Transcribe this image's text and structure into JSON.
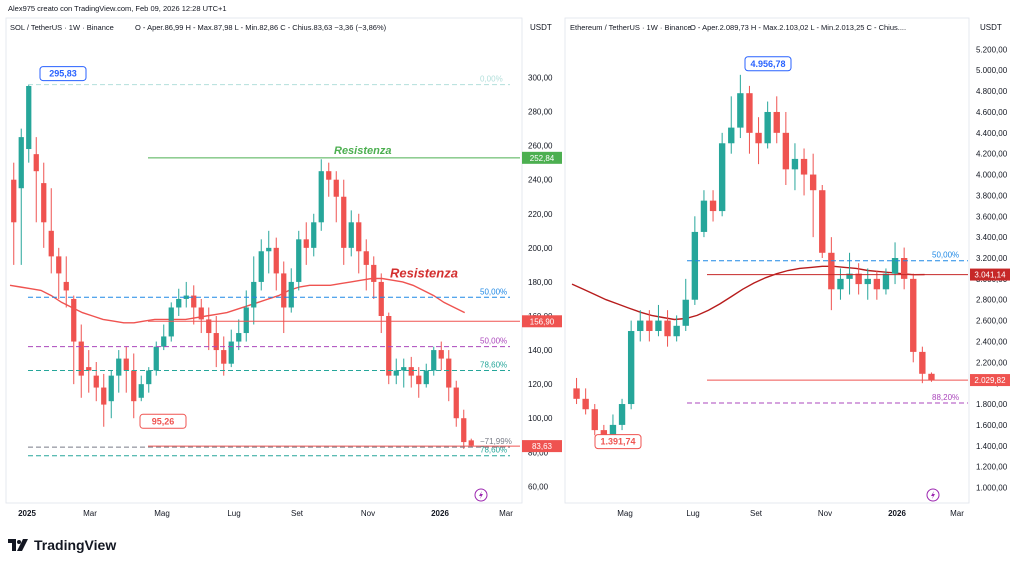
{
  "header_text": "Alex975 creato con TradingView.com, Feb 09, 2026 12:28 UTC+1",
  "brand": "TradingView",
  "chart_data": [
    {
      "type": "candlestick",
      "symbol_line": "SOL / TetherUS · 1W · Binance",
      "ohlc_line": "O - Aper.86,99  H - Max.87,98  L - Min.82,86  C - Chius.83,63  −3,36 (−3,86%)",
      "currency": "USDT",
      "y_ticks": [
        60,
        80,
        100,
        120,
        140,
        160,
        180,
        200,
        220,
        240,
        260,
        280,
        300
      ],
      "y_tick_labels": [
        "60,00",
        "80,00",
        "100,00",
        "120,00",
        "140,00",
        "160,00",
        "180,00",
        "200,00",
        "220,00",
        "240,00",
        "260,00",
        "280,00",
        "300,00"
      ],
      "ylim": [
        52,
        322
      ],
      "x_labels": [
        "2025",
        "Mar",
        "Mag",
        "Lug",
        "Set",
        "Nov",
        "2026",
        "Mar"
      ],
      "candles": [
        [
          240,
          215,
          190,
          250
        ],
        [
          235,
          265,
          190,
          270
        ],
        [
          258,
          295,
          250,
          296
        ],
        [
          255,
          245,
          215,
          265
        ],
        [
          238,
          215,
          200,
          250
        ],
        [
          210,
          195,
          185,
          235
        ],
        [
          195,
          185,
          170,
          200
        ],
        [
          180,
          175,
          165,
          195
        ],
        [
          170,
          145,
          120,
          172
        ],
        [
          145,
          125,
          112,
          155
        ],
        [
          130,
          128,
          115,
          140
        ],
        [
          125,
          118,
          110,
          133
        ],
        [
          118,
          108,
          95,
          126
        ],
        [
          110,
          125,
          100,
          128
        ],
        [
          125,
          135,
          115,
          140
        ],
        [
          135,
          128,
          115,
          142
        ],
        [
          128,
          110,
          100,
          138
        ],
        [
          112,
          120,
          110,
          125
        ],
        [
          120,
          128,
          115,
          130
        ],
        [
          128,
          142,
          125,
          145
        ],
        [
          142,
          148,
          140,
          155
        ],
        [
          148,
          165,
          145,
          168
        ],
        [
          165,
          170,
          160,
          176
        ],
        [
          170,
          172,
          165,
          180
        ],
        [
          172,
          165,
          155,
          178
        ],
        [
          165,
          158,
          150,
          170
        ],
        [
          158,
          150,
          140,
          165
        ],
        [
          150,
          140,
          130,
          160
        ],
        [
          140,
          132,
          125,
          148
        ],
        [
          132,
          145,
          130,
          152
        ],
        [
          145,
          150,
          140,
          158
        ],
        [
          150,
          165,
          145,
          175
        ],
        [
          165,
          180,
          155,
          195
        ],
        [
          180,
          198,
          175,
          205
        ],
        [
          198,
          200,
          185,
          210
        ],
        [
          200,
          185,
          175,
          206
        ],
        [
          185,
          165,
          150,
          192
        ],
        [
          165,
          180,
          162,
          188
        ],
        [
          180,
          205,
          175,
          210
        ],
        [
          205,
          200,
          190,
          215
        ],
        [
          200,
          215,
          195,
          220
        ],
        [
          215,
          245,
          210,
          252
        ],
        [
          245,
          240,
          230,
          250
        ],
        [
          240,
          230,
          215,
          245
        ],
        [
          230,
          200,
          190,
          240
        ],
        [
          200,
          215,
          195,
          222
        ],
        [
          215,
          198,
          185,
          220
        ],
        [
          198,
          190,
          175,
          205
        ],
        [
          190,
          180,
          170,
          195
        ],
        [
          180,
          160,
          150,
          185
        ],
        [
          160,
          125,
          120,
          162
        ],
        [
          125,
          128,
          120,
          135
        ],
        [
          128,
          130,
          118,
          135
        ],
        [
          130,
          125,
          118,
          136
        ],
        [
          125,
          120,
          112,
          130
        ],
        [
          120,
          128,
          118,
          132
        ],
        [
          128,
          140,
          125,
          142
        ],
        [
          140,
          135,
          128,
          145
        ],
        [
          135,
          118,
          110,
          140
        ],
        [
          118,
          100,
          95,
          122
        ],
        [
          100,
          86,
          82,
          105
        ],
        [
          87,
          84,
          83,
          88
        ]
      ],
      "ema": [
        178,
        177,
        176,
        175,
        172,
        168,
        165,
        162,
        160,
        158,
        157,
        156,
        156,
        157,
        158,
        158,
        158,
        158,
        159,
        160,
        161,
        162,
        164,
        166,
        168,
        170,
        172,
        175,
        177,
        178,
        178,
        178,
        179,
        180,
        181,
        182,
        182,
        181,
        180,
        178,
        175,
        172,
        168,
        165,
        162
      ],
      "levels": [
        {
          "label": "295,83",
          "value": 295.83,
          "kind": "high-callout"
        },
        {
          "label": "95,26",
          "value": 95.26,
          "kind": "low-callout"
        },
        {
          "label": "Resistenza",
          "value": 252.84,
          "color": "#4caf50"
        },
        {
          "label": "Resistenza",
          "value": 156.9,
          "color": "#d32f2f"
        },
        {
          "label": "252,84",
          "value": 252.84,
          "color": "#4caf50"
        },
        {
          "label": "156,90",
          "value": 156.9,
          "color": "#ef5350"
        },
        {
          "label": "83,63",
          "value": 83.63,
          "color": "#ef5350"
        },
        {
          "label": "0,00%",
          "value": 295.83,
          "color": "#b2dfdb"
        },
        {
          "label": "50,00%",
          "value": 171.0,
          "color": "#1e88e5"
        },
        {
          "label": "50,00%",
          "value": 142.0,
          "color": "#ab47bc"
        },
        {
          "label": "78,60%",
          "value": 128.0,
          "color": "#26a69a"
        },
        {
          "label": "78,60%",
          "value": 78.0,
          "color": "#26a69a"
        },
        {
          "label": "−71,99%",
          "value": 83.0,
          "color": "#787b86"
        }
      ]
    },
    {
      "type": "candlestick",
      "symbol_line": "Ethereum / TetherUS · 1W · Binance",
      "ohlc_line": "O - Aper.2.089,73  H - Max.2.103,02  L - Min.2.013,25  C - Chius....",
      "currency": "USDT",
      "y_ticks": [
        1000,
        1200,
        1400,
        1600,
        1800,
        2000,
        2200,
        2400,
        2600,
        2800,
        3000,
        3200,
        3400,
        3600,
        3800,
        4000,
        4200,
        4400,
        4600,
        4800,
        5000,
        5200
      ],
      "y_tick_labels": [
        "1.000,00",
        "1.200,00",
        "1.400,00",
        "1.600,00",
        "1.800,00",
        "2.000,00",
        "2.200,00",
        "2.400,00",
        "2.600,00",
        "2.800,00",
        "3.000,00",
        "3.200,00",
        "3.400,00",
        "3.600,00",
        "3.800,00",
        "4.000,00",
        "4.200,00",
        "4.400,00",
        "4.600,00",
        "4.800,00",
        "5.000,00",
        "5.200,00"
      ],
      "ylim": [
        880,
        5290
      ],
      "x_labels": [
        "Mag",
        "Lug",
        "Set",
        "Nov",
        "2026",
        "Mar"
      ],
      "candles": [
        [
          1950,
          1850,
          1800,
          2050
        ],
        [
          1850,
          1750,
          1700,
          1950
        ],
        [
          1750,
          1550,
          1500,
          1800
        ],
        [
          1550,
          1500,
          1380,
          1600
        ],
        [
          1500,
          1600,
          1450,
          1700
        ],
        [
          1600,
          1800,
          1550,
          1850
        ],
        [
          1800,
          2500,
          1750,
          2600
        ],
        [
          2500,
          2600,
          2400,
          2700
        ],
        [
          2600,
          2500,
          2400,
          2700
        ],
        [
          2500,
          2600,
          2450,
          2750
        ],
        [
          2600,
          2450,
          2350,
          2700
        ],
        [
          2450,
          2550,
          2400,
          2650
        ],
        [
          2550,
          2800,
          2500,
          3000
        ],
        [
          2800,
          3450,
          2750,
          3600
        ],
        [
          3450,
          3750,
          3400,
          3850
        ],
        [
          3750,
          3650,
          3550,
          3850
        ],
        [
          3650,
          4300,
          3600,
          4400
        ],
        [
          4300,
          4450,
          4200,
          4750
        ],
        [
          4450,
          4780,
          4350,
          4956
        ],
        [
          4780,
          4400,
          4200,
          4850
        ],
        [
          4400,
          4300,
          4100,
          4550
        ],
        [
          4300,
          4600,
          4250,
          4700
        ],
        [
          4600,
          4400,
          4300,
          4750
        ],
        [
          4400,
          4050,
          3900,
          4600
        ],
        [
          4050,
          4150,
          3850,
          4300
        ],
        [
          4150,
          4000,
          3800,
          4250
        ],
        [
          4000,
          3850,
          3400,
          4200
        ],
        [
          3850,
          3250,
          3200,
          3900
        ],
        [
          3250,
          2900,
          2700,
          3400
        ],
        [
          2900,
          3000,
          2800,
          3100
        ],
        [
          3000,
          3050,
          2850,
          3250
        ],
        [
          3050,
          2950,
          2850,
          3150
        ],
        [
          2950,
          3000,
          2800,
          3100
        ],
        [
          3000,
          2900,
          2800,
          3080
        ],
        [
          2900,
          3050,
          2850,
          3100
        ],
        [
          3050,
          3200,
          2950,
          3350
        ],
        [
          3200,
          3000,
          2900,
          3300
        ],
        [
          3000,
          2300,
          2200,
          3050
        ],
        [
          2300,
          2090,
          2000,
          2350
        ],
        [
          2090,
          2030,
          2013,
          2103
        ]
      ],
      "ema": [
        2950,
        2900,
        2850,
        2800,
        2760,
        2720,
        2680,
        2650,
        2630,
        2610,
        2620,
        2650,
        2700,
        2760,
        2830,
        2900,
        2960,
        3010,
        3050,
        3080,
        3100,
        3110,
        3120,
        3120,
        3110,
        3100,
        3080,
        3070,
        3060,
        3050,
        3040,
        3041
      ],
      "levels": [
        {
          "label": "4.956,78",
          "value": 4956.78,
          "kind": "high-callout"
        },
        {
          "label": "1.391,74",
          "value": 1391.74,
          "kind": "low-callout"
        },
        {
          "label": "3.041,14",
          "value": 3041.14,
          "color": "#c62828"
        },
        {
          "label": "2.029,82",
          "value": 2029.82,
          "color": "#ef5350"
        },
        {
          "label": "50,00%",
          "value": 3174,
          "color": "#1e88e5"
        },
        {
          "label": "88,20%",
          "value": 1810,
          "color": "#ab47bc"
        }
      ]
    }
  ]
}
